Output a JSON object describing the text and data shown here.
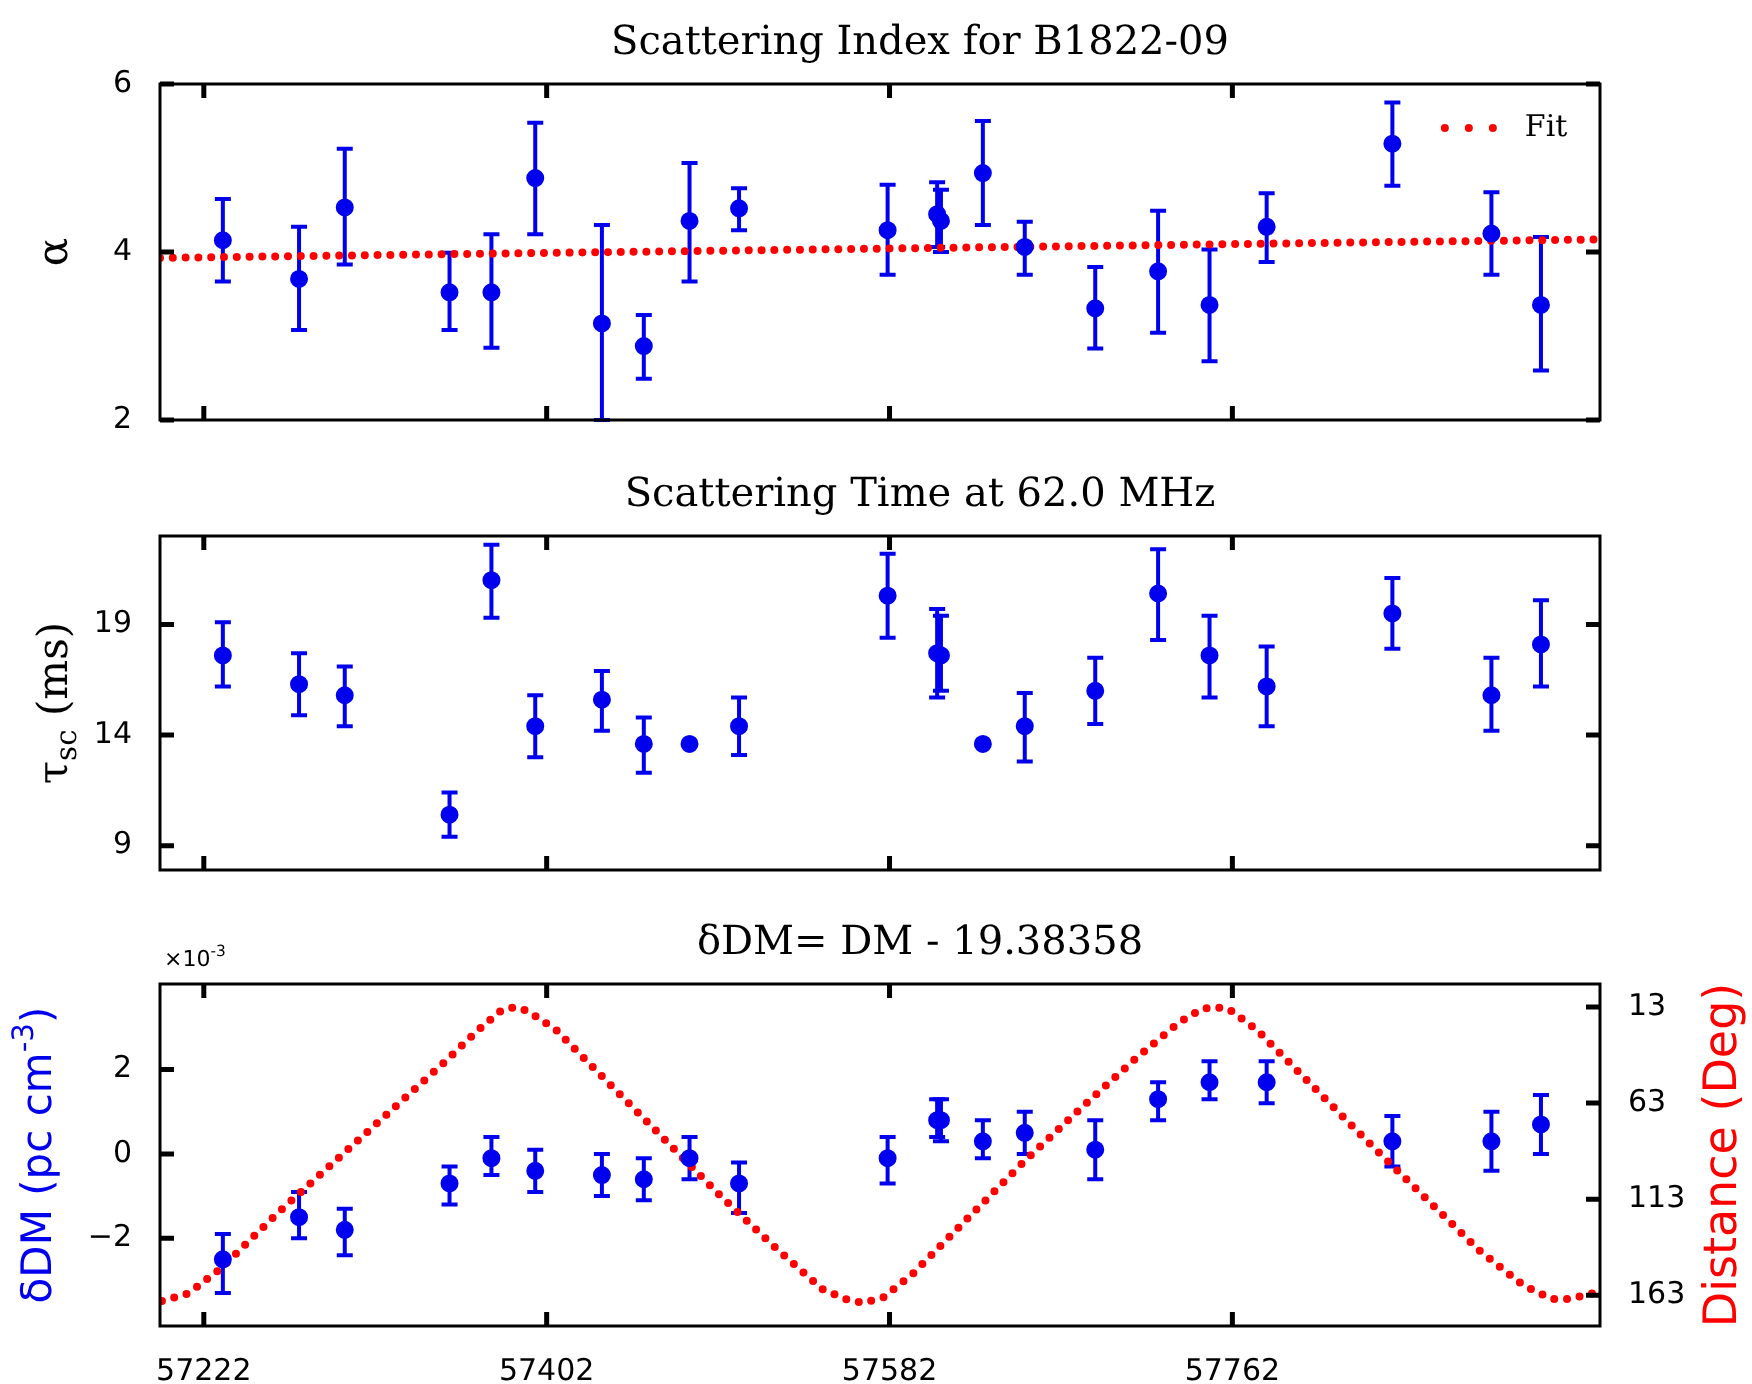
{
  "chart_data": [
    {
      "type": "scatter",
      "title": "Scattering Index for B1822-09",
      "ylabel": "α",
      "xlim": [
        57199,
        57955
      ],
      "xticks": [
        57222,
        57402,
        57582,
        57762
      ],
      "ylim": [
        2,
        6
      ],
      "yticks": [
        2,
        4,
        6
      ],
      "tick_labels": "y",
      "legend": "top right",
      "x": [
        57232,
        57272,
        57296,
        57351,
        57373,
        57396,
        57431,
        57453,
        57477,
        57503,
        57581,
        57607,
        57609,
        57631,
        57653,
        57690,
        57723,
        57750,
        57780,
        57846,
        57898,
        57924
      ],
      "series": [
        {
          "type": "scatter",
          "color": "#0000ee",
          "marker": "circle",
          "values": [
            4.14,
            3.68,
            4.53,
            3.52,
            3.52,
            4.88,
            3.15,
            2.88,
            4.37,
            4.52,
            4.26,
            4.45,
            4.37,
            4.94,
            4.06,
            3.33,
            3.77,
            3.37,
            4.3,
            5.29,
            4.22,
            3.37
          ],
          "errors": [
            [
              3.65,
              4.63
            ],
            [
              3.07,
              4.3
            ],
            [
              3.85,
              5.23
            ],
            [
              3.07,
              3.99
            ],
            [
              2.86,
              4.21
            ],
            [
              4.21,
              5.54
            ],
            [
              2.0,
              4.32
            ],
            [
              2.49,
              3.25
            ],
            [
              3.65,
              5.06
            ],
            [
              4.26,
              4.76
            ],
            [
              3.73,
              4.8
            ],
            [
              4.06,
              4.83
            ],
            [
              4.0,
              4.74
            ],
            [
              4.32,
              5.56
            ],
            [
              3.73,
              4.36
            ],
            [
              2.85,
              3.82
            ],
            [
              3.04,
              4.49
            ],
            [
              2.7,
              4.03
            ],
            [
              3.88,
              4.7
            ],
            [
              4.79,
              5.78
            ],
            [
              3.73,
              4.71
            ],
            [
              2.59,
              4.18
            ]
          ]
        },
        {
          "type": "line",
          "name": "Fit",
          "color": "#ff0000",
          "marker": "none",
          "line_style": "dotted",
          "x": [
            57199,
            57955
          ],
          "values": [
            3.93,
            4.15
          ]
        }
      ]
    },
    {
      "type": "scatter",
      "title": "Scattering Time at 62.0 MHz",
      "ylabel": "τ$_{sc}$ (ms)",
      "xlim": [
        57199,
        57955
      ],
      "xticks": [
        57222,
        57402,
        57582,
        57762
      ],
      "ylim": [
        7.9,
        23
      ],
      "yticks": [
        9,
        14,
        19
      ],
      "tick_labels": "y",
      "x": [
        57232,
        57272,
        57296,
        57351,
        57373,
        57396,
        57431,
        57453,
        57477,
        57503,
        57581,
        57607,
        57609,
        57631,
        57653,
        57690,
        57723,
        57750,
        57780,
        57846,
        57898,
        57924
      ],
      "series": [
        {
          "type": "scatter",
          "color": "#0000ee",
          "marker": "circle",
          "values": [
            17.6,
            16.3,
            15.8,
            10.4,
            21.0,
            14.4,
            15.6,
            13.6,
            13.6,
            14.4,
            20.3,
            17.7,
            17.6,
            13.6,
            14.4,
            16.0,
            20.4,
            17.6,
            16.2,
            19.5,
            15.8,
            18.1
          ],
          "errors": [
            [
              16.2,
              19.1
            ],
            [
              14.9,
              17.7
            ],
            [
              14.4,
              17.1
            ],
            [
              9.4,
              11.4
            ],
            [
              19.3,
              22.6
            ],
            [
              13.0,
              15.8
            ],
            [
              14.2,
              16.9
            ],
            [
              12.3,
              14.8
            ],
            null,
            [
              13.1,
              15.7
            ],
            [
              18.4,
              22.2
            ],
            [
              15.7,
              19.7
            ],
            [
              16.0,
              19.4
            ],
            null,
            [
              12.8,
              15.9
            ],
            [
              14.5,
              17.5
            ],
            [
              18.3,
              22.4
            ],
            [
              15.7,
              19.4
            ],
            [
              14.4,
              18.0
            ],
            [
              17.9,
              21.1
            ],
            [
              14.2,
              17.5
            ],
            [
              16.2,
              20.1
            ]
          ]
        }
      ]
    },
    {
      "type": "scatter",
      "title": "δDM= DM - 19.38358",
      "ylabel": "δDM (pc cm$^{-3}$)",
      "y2label": "Distance (Deg)",
      "annotations": [
        "×10$^{-3}$"
      ],
      "xlim": [
        57199,
        57955
      ],
      "xticks": [
        57222,
        57402,
        57582,
        57762
      ],
      "ylim": [
        -4.08,
        4.03
      ],
      "yticks": [
        {
          "value": -2,
          "label": "−2"
        },
        0,
        2
      ],
      "y2lim": [
        179,
        1
      ],
      "y2ticks": [
        13,
        63,
        113,
        163
      ],
      "x": [
        57232,
        57272,
        57296,
        57351,
        57373,
        57396,
        57431,
        57453,
        57477,
        57503,
        57581,
        57607,
        57609,
        57631,
        57653,
        57690,
        57723,
        57750,
        57780,
        57846,
        57898,
        57924
      ],
      "series": [
        {
          "type": "scatter",
          "color": "#0000ee",
          "marker": "circle",
          "values": [
            -2.5,
            -1.5,
            -1.8,
            -0.7,
            -0.1,
            -0.4,
            -0.5,
            -0.6,
            -0.1,
            -0.7,
            -0.1,
            0.8,
            0.8,
            0.3,
            0.5,
            0.1,
            1.3,
            1.7,
            1.7,
            0.3,
            0.3,
            0.7
          ],
          "errors": [
            [
              -3.3,
              -1.9
            ],
            [
              -2.0,
              -0.9
            ],
            [
              -2.4,
              -1.3
            ],
            [
              -1.2,
              -0.3
            ],
            [
              -0.5,
              0.4
            ],
            [
              -0.9,
              0.1
            ],
            [
              -1.0,
              0
            ],
            [
              -1.1,
              -0.1
            ],
            [
              -0.6,
              0.4
            ],
            [
              -1.4,
              -0.2
            ],
            [
              -0.7,
              0.4
            ],
            [
              0.4,
              1.3
            ],
            [
              0.3,
              1.3
            ],
            [
              -0.1,
              0.8
            ],
            [
              0,
              1.0
            ],
            [
              -0.6,
              0.8
            ],
            [
              0.8,
              1.7
            ],
            [
              1.3,
              2.2
            ],
            [
              1.2,
              2.2
            ],
            [
              -0.3,
              0.9
            ],
            [
              -0.4,
              1.0
            ],
            [
              0,
              1.4
            ]
          ]
        },
        {
          "type": "line",
          "axis": "y2",
          "color": "#ff0000",
          "marker": "none",
          "line_style": "dotted",
          "x": [
            57200,
            57214,
            57231,
            57261,
            57290,
            57319,
            57348,
            57366,
            57378,
            57385,
            57392,
            57407,
            57436,
            57465,
            57494,
            57524,
            57547,
            57559,
            57568,
            57579,
            57594,
            57623,
            57652,
            57681,
            57711,
            57734,
            57746,
            57753,
            57760,
            57775,
            57804,
            57833,
            57863,
            57892,
            57915,
            57930,
            57939,
            57955
          ],
          "values": [
            166,
            162,
            149,
            120,
            94,
            68,
            42,
            25,
            15,
            13,
            15,
            25,
            54,
            83,
            112,
            140,
            160,
            165,
            167,
            164,
            152,
            123,
            94,
            67,
            40,
            21,
            14,
            13,
            14,
            25,
            54,
            83,
            112,
            140,
            158,
            165,
            165,
            161
          ]
        }
      ]
    }
  ]
}
